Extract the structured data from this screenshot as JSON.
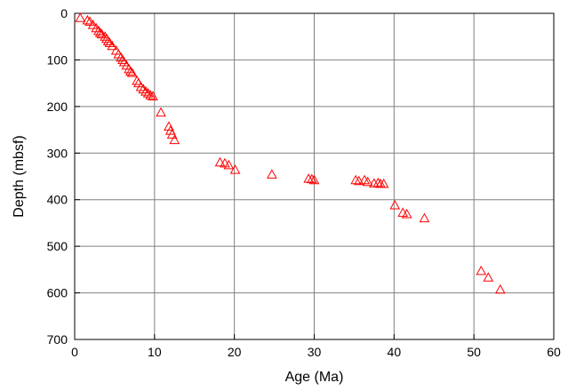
{
  "chart_data": {
    "type": "scatter",
    "title": "",
    "xlabel": "Age (Ma)",
    "ylabel": "Depth (mbsf)",
    "xlim": [
      0,
      60
    ],
    "ylim": [
      0,
      700
    ],
    "y_inverted": true,
    "grid": true,
    "marker": "open-triangle",
    "marker_color": "#ff0000",
    "grid_color": "#808080",
    "x_ticks": [
      {
        "value": 0,
        "label": "0"
      },
      {
        "value": 10,
        "label": "10"
      },
      {
        "value": 20,
        "label": "20"
      },
      {
        "value": 30,
        "label": "30"
      },
      {
        "value": 40,
        "label": "40"
      },
      {
        "value": 50,
        "label": "50"
      },
      {
        "value": 60,
        "label": "60"
      }
    ],
    "y_ticks": [
      {
        "value": 0,
        "label": "0"
      },
      {
        "value": 100,
        "label": "100"
      },
      {
        "value": 200,
        "label": "200"
      },
      {
        "value": 300,
        "label": "300"
      },
      {
        "value": 400,
        "label": "400"
      },
      {
        "value": 500,
        "label": "500"
      },
      {
        "value": 600,
        "label": "600"
      },
      {
        "value": 700,
        "label": "700"
      }
    ],
    "points": [
      [
        0.7,
        10
      ],
      [
        1.6,
        15
      ],
      [
        1.9,
        18
      ],
      [
        2.3,
        25
      ],
      [
        2.7,
        32
      ],
      [
        3.0,
        38
      ],
      [
        3.2,
        42
      ],
      [
        3.4,
        45
      ],
      [
        3.8,
        50
      ],
      [
        4.0,
        55
      ],
      [
        4.2,
        60
      ],
      [
        4.4,
        64
      ],
      [
        4.7,
        70
      ],
      [
        5.2,
        80
      ],
      [
        5.5,
        88
      ],
      [
        5.8,
        95
      ],
      [
        6.0,
        100
      ],
      [
        6.2,
        105
      ],
      [
        6.5,
        112
      ],
      [
        6.8,
        120
      ],
      [
        7.0,
        125
      ],
      [
        7.2,
        128
      ],
      [
        7.8,
        145
      ],
      [
        8.0,
        150
      ],
      [
        8.3,
        158
      ],
      [
        8.6,
        163
      ],
      [
        8.9,
        168
      ],
      [
        9.2,
        172
      ],
      [
        9.5,
        176
      ],
      [
        9.8,
        178
      ],
      [
        10.8,
        213
      ],
      [
        11.8,
        243
      ],
      [
        12.0,
        252
      ],
      [
        12.2,
        260
      ],
      [
        12.5,
        272
      ],
      [
        18.2,
        320
      ],
      [
        18.8,
        322
      ],
      [
        19.3,
        326
      ],
      [
        20.1,
        336
      ],
      [
        24.7,
        346
      ],
      [
        29.3,
        355
      ],
      [
        29.7,
        356
      ],
      [
        30.0,
        358
      ],
      [
        35.2,
        358
      ],
      [
        35.6,
        360
      ],
      [
        36.3,
        358
      ],
      [
        36.7,
        362
      ],
      [
        37.5,
        365
      ],
      [
        38.0,
        364
      ],
      [
        38.3,
        366
      ],
      [
        38.7,
        366
      ],
      [
        40.1,
        412
      ],
      [
        41.1,
        428
      ],
      [
        41.6,
        431
      ],
      [
        43.8,
        440
      ],
      [
        50.9,
        553
      ],
      [
        51.8,
        567
      ],
      [
        53.3,
        593
      ]
    ]
  }
}
